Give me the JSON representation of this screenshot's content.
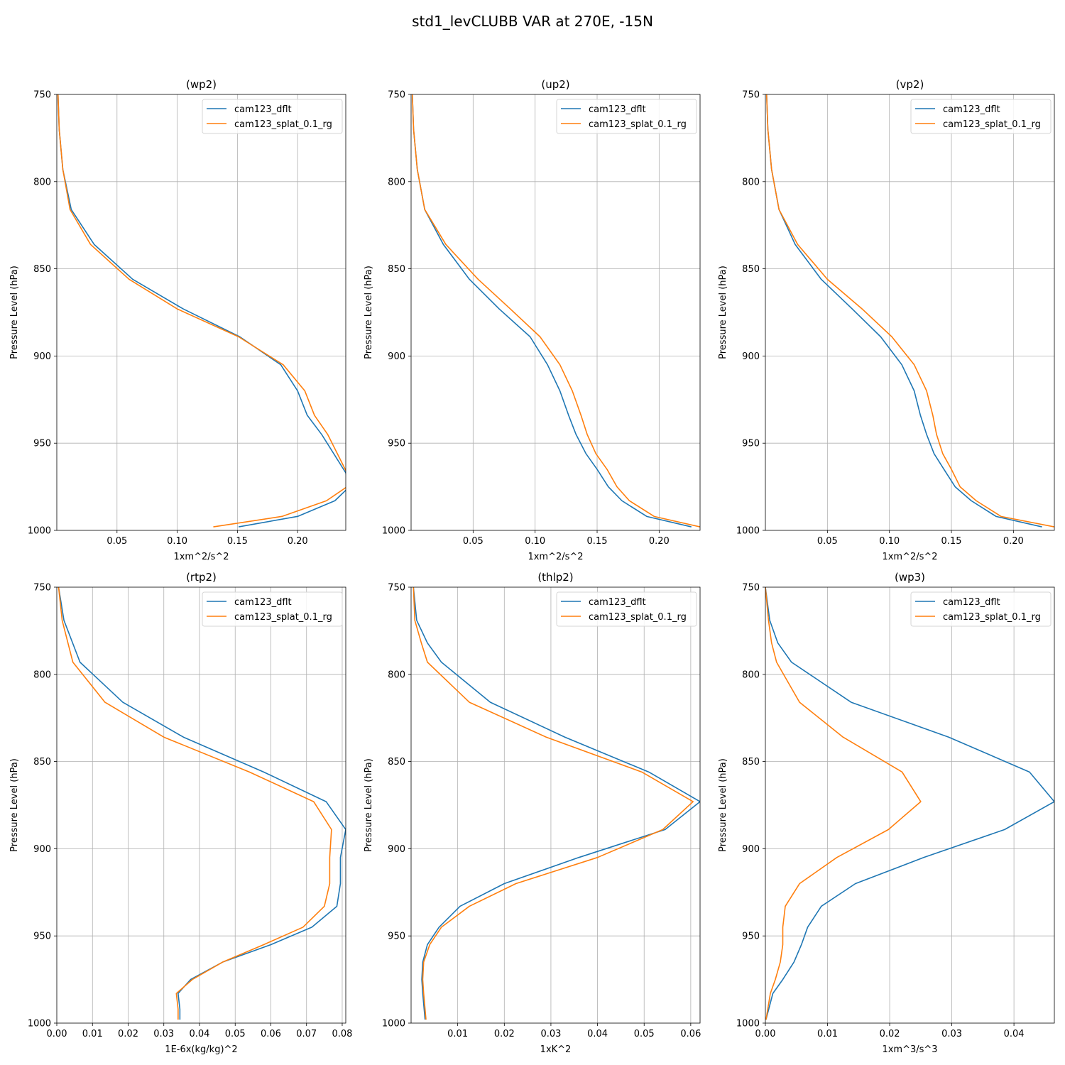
{
  "figure": {
    "title": "std1_levCLUBB VAR at 270E, -15N"
  },
  "colors": {
    "cam123_dflt": "#1f77b4",
    "cam123_splat_0.1_rg": "#ff7f0e"
  },
  "chart_data": [
    {
      "type": "line",
      "title": "(wp2)",
      "xlabel": "1xm^2/s^2",
      "ylabel": "Pressure Level (hPa)",
      "xlim": [
        0.0,
        0.24
      ],
      "ylim": [
        1000,
        750
      ],
      "xticks": [
        0.05,
        0.1,
        0.15,
        0.2
      ],
      "xticklabels": [
        "0.05",
        "0.10",
        "0.15",
        "0.20"
      ],
      "yticks": [
        750,
        800,
        850,
        900,
        950,
        1000
      ],
      "yticklabels": [
        "750",
        "800",
        "850",
        "900",
        "950",
        "1000"
      ],
      "grid": true,
      "legend": "top-right",
      "series": [
        {
          "name": "cam123_dflt",
          "color": "#1f77b4",
          "x": [
            0.001,
            0.002,
            0.005,
            0.012,
            0.031,
            0.063,
            0.105,
            0.152,
            0.186,
            0.2,
            0.208,
            0.22,
            0.24,
            0.243,
            0.231,
            0.2,
            0.151
          ],
          "y": [
            750,
            770,
            793,
            816,
            836,
            856,
            873,
            889,
            905,
            920,
            934,
            945,
            967,
            975,
            983,
            992,
            998
          ]
        },
        {
          "name": "cam123_splat_0.1_rg",
          "color": "#ff7f0e",
          "x": [
            0.001,
            0.002,
            0.005,
            0.011,
            0.028,
            0.06,
            0.1,
            0.151,
            0.188,
            0.206,
            0.214,
            0.225,
            0.241,
            0.241,
            0.224,
            0.187,
            0.13
          ],
          "y": [
            750,
            770,
            793,
            816,
            836,
            856,
            873,
            889,
            905,
            920,
            934,
            945,
            967,
            975,
            983,
            992,
            998
          ]
        }
      ]
    },
    {
      "type": "line",
      "title": "(up2)",
      "xlabel": "1xm^2/s^2",
      "ylabel": "Pressure Level (hPa)",
      "xlim": [
        0.0,
        0.233
      ],
      "ylim": [
        1000,
        750
      ],
      "xticks": [
        0.05,
        0.1,
        0.15,
        0.2
      ],
      "xticklabels": [
        "0.05",
        "0.10",
        "0.15",
        "0.20"
      ],
      "yticks": [
        750,
        800,
        850,
        900,
        950,
        1000
      ],
      "yticklabels": [
        "750",
        "800",
        "850",
        "900",
        "950",
        "1000"
      ],
      "grid": true,
      "legend": "top-right",
      "series": [
        {
          "name": "cam123_dflt",
          "color": "#1f77b4",
          "x": [
            0.001,
            0.002,
            0.005,
            0.011,
            0.026,
            0.047,
            0.071,
            0.096,
            0.11,
            0.12,
            0.127,
            0.133,
            0.141,
            0.15,
            0.159,
            0.17,
            0.19,
            0.226
          ],
          "y": [
            750,
            770,
            793,
            816,
            836,
            856,
            873,
            889,
            905,
            920,
            934,
            945,
            956,
            965,
            975,
            983,
            992,
            998
          ]
        },
        {
          "name": "cam123_splat_0.1_rg",
          "color": "#ff7f0e",
          "x": [
            0.001,
            0.002,
            0.005,
            0.011,
            0.028,
            0.054,
            0.08,
            0.104,
            0.12,
            0.13,
            0.137,
            0.142,
            0.149,
            0.158,
            0.166,
            0.176,
            0.196,
            0.233
          ],
          "y": [
            750,
            770,
            793,
            816,
            836,
            856,
            873,
            889,
            905,
            920,
            934,
            945,
            956,
            965,
            975,
            983,
            992,
            998
          ]
        }
      ]
    },
    {
      "type": "line",
      "title": "(vp2)",
      "xlabel": "1xm^2/s^2",
      "ylabel": "Pressure Level (hPa)",
      "xlim": [
        0.0,
        0.233
      ],
      "ylim": [
        1000,
        750
      ],
      "xticks": [
        0.05,
        0.1,
        0.15,
        0.2
      ],
      "xticklabels": [
        "0.05",
        "0.10",
        "0.15",
        "0.20"
      ],
      "yticks": [
        750,
        800,
        850,
        900,
        950,
        1000
      ],
      "yticklabels": [
        "750",
        "800",
        "850",
        "900",
        "950",
        "1000"
      ],
      "grid": true,
      "legend": "top-right",
      "series": [
        {
          "name": "cam123_dflt",
          "color": "#1f77b4",
          "x": [
            0.001,
            0.002,
            0.005,
            0.011,
            0.024,
            0.045,
            0.07,
            0.093,
            0.11,
            0.12,
            0.125,
            0.13,
            0.136,
            0.144,
            0.153,
            0.166,
            0.186,
            0.223
          ],
          "y": [
            750,
            770,
            793,
            816,
            836,
            856,
            873,
            889,
            905,
            920,
            934,
            945,
            956,
            965,
            975,
            983,
            992,
            998
          ]
        },
        {
          "name": "cam123_splat_0.1_rg",
          "color": "#ff7f0e",
          "x": [
            0.001,
            0.002,
            0.005,
            0.011,
            0.026,
            0.05,
            0.078,
            0.102,
            0.12,
            0.13,
            0.135,
            0.138,
            0.143,
            0.15,
            0.157,
            0.17,
            0.19,
            0.233
          ],
          "y": [
            750,
            770,
            793,
            816,
            836,
            856,
            873,
            889,
            905,
            920,
            934,
            945,
            956,
            965,
            975,
            983,
            992,
            998
          ]
        }
      ]
    },
    {
      "type": "line",
      "title": "(rtp2)",
      "xlabel": "1E-6x(kg/kg)^2",
      "ylabel": "Pressure Level (hPa)",
      "xlim": [
        0.0,
        0.081
      ],
      "ylim": [
        1000,
        750
      ],
      "xticks": [
        0.0,
        0.01,
        0.02,
        0.03,
        0.04,
        0.05,
        0.06,
        0.07,
        0.08
      ],
      "xticklabels": [
        "0.00",
        "0.01",
        "0.02",
        "0.03",
        "0.04",
        "0.05",
        "0.06",
        "0.07",
        "0.08"
      ],
      "yticks": [
        750,
        800,
        850,
        900,
        950,
        1000
      ],
      "yticklabels": [
        "750",
        "800",
        "850",
        "900",
        "950",
        "1000"
      ],
      "grid": true,
      "legend": "top-right",
      "series": [
        {
          "name": "cam123_dflt",
          "color": "#1f77b4",
          "x": [
            0.0005,
            0.002,
            0.0065,
            0.0185,
            0.0355,
            0.058,
            0.0755,
            0.081,
            0.0795,
            0.0795,
            0.0785,
            0.0715,
            0.06,
            0.0465,
            0.0375,
            0.034,
            0.0345,
            0.0345
          ],
          "y": [
            750,
            769,
            793,
            816,
            836,
            856,
            873,
            889,
            905,
            920,
            933,
            945,
            955,
            965,
            975,
            983,
            992,
            998
          ]
        },
        {
          "name": "cam123_splat_0.1_rg",
          "color": "#ff7f0e",
          "x": [
            0.0005,
            0.0015,
            0.0045,
            0.0135,
            0.03,
            0.054,
            0.072,
            0.077,
            0.0765,
            0.0765,
            0.075,
            0.069,
            0.058,
            0.0465,
            0.038,
            0.0335,
            0.034,
            0.034
          ],
          "y": [
            750,
            769,
            793,
            816,
            836,
            856,
            873,
            889,
            905,
            920,
            933,
            945,
            955,
            965,
            975,
            983,
            992,
            998
          ]
        }
      ]
    },
    {
      "type": "line",
      "title": "(thlp2)",
      "xlabel": "1xK^2",
      "ylabel": "Pressure Level (hPa)",
      "xlim": [
        0.0,
        0.062
      ],
      "ylim": [
        1000,
        750
      ],
      "xticks": [
        0.01,
        0.02,
        0.03,
        0.04,
        0.05,
        0.06
      ],
      "xticklabels": [
        "0.01",
        "0.02",
        "0.03",
        "0.04",
        "0.05",
        "0.06"
      ],
      "yticks": [
        750,
        800,
        850,
        900,
        950,
        1000
      ],
      "yticklabels": [
        "750",
        "800",
        "850",
        "900",
        "950",
        "1000"
      ],
      "grid": true,
      "legend": "top-right",
      "series": [
        {
          "name": "cam123_dflt",
          "color": "#1f77b4",
          "x": [
            0.0005,
            0.0012,
            0.0035,
            0.0065,
            0.017,
            0.033,
            0.051,
            0.062,
            0.0545,
            0.036,
            0.02,
            0.0105,
            0.006,
            0.0035,
            0.0025,
            0.0023,
            0.0025,
            0.003
          ],
          "y": [
            750,
            769,
            782,
            793,
            816,
            836,
            856,
            873,
            889,
            905,
            920,
            933,
            945,
            955,
            965,
            975,
            983,
            998
          ]
        },
        {
          "name": "cam123_splat_0.1_rg",
          "color": "#ff7f0e",
          "x": [
            0.0005,
            0.0008,
            0.0022,
            0.0035,
            0.0125,
            0.029,
            0.0495,
            0.0605,
            0.054,
            0.04,
            0.0225,
            0.0125,
            0.0065,
            0.004,
            0.0027,
            0.0025,
            0.0027,
            0.0032
          ],
          "y": [
            750,
            769,
            782,
            793,
            816,
            836,
            856,
            873,
            889,
            905,
            920,
            933,
            945,
            955,
            965,
            975,
            983,
            998
          ]
        }
      ]
    },
    {
      "type": "line",
      "title": "(wp3)",
      "xlabel": "1xm^3/s^3",
      "ylabel": "Pressure Level (hPa)",
      "xlim": [
        0.0,
        0.0465
      ],
      "ylim": [
        1000,
        750
      ],
      "xticks": [
        0.0,
        0.01,
        0.02,
        0.03,
        0.04
      ],
      "xticklabels": [
        "0.00",
        "0.01",
        "0.02",
        "0.03",
        "0.04"
      ],
      "yticks": [
        750,
        800,
        850,
        900,
        950,
        1000
      ],
      "yticklabels": [
        "750",
        "800",
        "850",
        "900",
        "950",
        "1000"
      ],
      "grid": true,
      "legend": "top-right",
      "series": [
        {
          "name": "cam123_dflt",
          "color": "#1f77b4",
          "x": [
            0.0,
            0.0007,
            0.002,
            0.0042,
            0.0138,
            0.0295,
            0.0425,
            0.0465,
            0.0385,
            0.0255,
            0.0145,
            0.009,
            0.0068,
            0.0058,
            0.0046,
            0.0028,
            0.0012,
            0.0001
          ],
          "y": [
            750,
            769,
            782,
            793,
            816,
            836,
            856,
            873,
            889,
            905,
            920,
            933,
            945,
            955,
            965,
            975,
            983,
            998
          ]
        },
        {
          "name": "cam123_splat_0.1_rg",
          "color": "#ff7f0e",
          "x": [
            0.0,
            0.0005,
            0.001,
            0.0018,
            0.0055,
            0.0125,
            0.022,
            0.025,
            0.0198,
            0.0115,
            0.0055,
            0.0032,
            0.0028,
            0.0028,
            0.0024,
            0.0016,
            0.0008,
            0.0001
          ],
          "y": [
            750,
            769,
            782,
            793,
            816,
            836,
            856,
            873,
            889,
            905,
            920,
            933,
            945,
            955,
            965,
            975,
            983,
            998
          ]
        }
      ]
    }
  ]
}
